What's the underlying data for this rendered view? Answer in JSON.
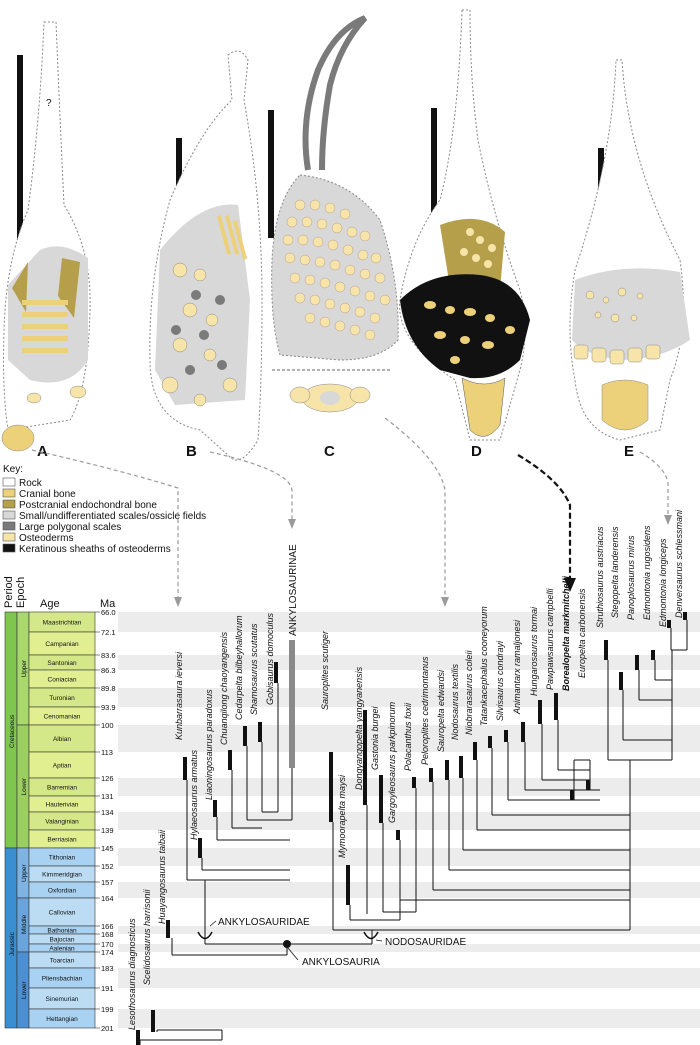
{
  "panels": [
    "A",
    "B",
    "C",
    "D",
    "E"
  ],
  "question_mark": "?",
  "key": {
    "title": "Key:",
    "items": [
      {
        "label": "Rock",
        "color": "#ffffff"
      },
      {
        "label": "Cranial bone",
        "color": "#ecd17a"
      },
      {
        "label": "Postcranial endochondral bone",
        "color": "#b59f4b"
      },
      {
        "label": "Small/undifferentiated scales/ossicle fields",
        "color": "#d8d8d8"
      },
      {
        "label": "Large polygonal scales",
        "color": "#7a7a7a"
      },
      {
        "label": "Osteoderms",
        "color": "#f7e4a8"
      },
      {
        "label": "Keratinous sheaths of osteoderms",
        "color": "#111111"
      }
    ]
  },
  "timescale": {
    "headers": {
      "period": "Period",
      "epoch": "Epoch",
      "age": "Age",
      "ma": "Ma"
    },
    "periods": [
      {
        "name": "Cretaceous",
        "color": "#7fc64e"
      },
      {
        "name": "Jurassic",
        "color": "#3a8fd0"
      }
    ],
    "epochs": [
      "Upper",
      "Lower",
      "Upper",
      "Middle",
      "Lower"
    ],
    "ages": [
      "Maastrichtian",
      "Campanian",
      "Santonian",
      "Coniacian",
      "Turonian",
      "Cenomanian",
      "Albian",
      "Aptian",
      "Barremian",
      "Hauterivian",
      "Valanginian",
      "Berriasian",
      "Tithonian",
      "Kimmeridgian",
      "Oxfordian",
      "Callovian",
      "Bathonian",
      "Bajocian",
      "Aalenian",
      "Toarcian",
      "Pliensbachian",
      "Sinemurian",
      "Hettangian"
    ],
    "ma_ticks": [
      "66.0",
      "72.1",
      "83.6",
      "86.3",
      "89.8",
      "93.9",
      "100",
      "113",
      "126",
      "131",
      "134",
      "139",
      "145",
      "152",
      "157",
      "164",
      "166",
      "168",
      "170",
      "174",
      "183",
      "191",
      "199",
      "201"
    ]
  },
  "taxa": [
    "Lesothosaurus diagnosticus",
    "Scelidosaurus harrisonii",
    "Huayangosaurus taibaii",
    "Kunbarrasaura ieversi",
    "Hylaeosaurus armatus",
    "Liaoningosaurus paradoxus",
    "Chuanqilong chaoyangensis",
    "Cedarpelta bilbeyhallorum",
    "Shamosaurus scutatus",
    "Gobisaurus domoculus",
    "Sauroplites scutiger",
    "Mymoorapelta maysi",
    "Dongyangopelta yangyanensis",
    "Gastonia burgei",
    "Gargoyleosaurus parkpinorum",
    "Polacanthus foxii",
    "Peloroplites cedrimontanus",
    "Sauropelta edwardsi",
    "Nodosaurus textilis",
    "Niobrarasaurus coleii",
    "Tatankacephalus cooneyorum",
    "Silvisaurus condrayi",
    "Animantarx ramaljonesi",
    "Hungarosaurus tormai",
    "Pawpawsaurus campbelli",
    "Borealopelta markmitchelli",
    "Europelta carbonensis",
    "Struthiosaurus austriacus",
    "Stegopelta landerensis",
    "Panoplosaurus mirus",
    "Edmontonia rugosidens",
    "Edmontonia longiceps",
    "Denversaurus schlessmani"
  ],
  "clades": {
    "ankylosaurinae": "ANKYLOSAURINAE",
    "ankylosauridae": "ANKYLOSAURIDAE",
    "nodosauridae": "NODOSAURIDAE",
    "ankylosauria": "ANKYLOSAURIA"
  }
}
